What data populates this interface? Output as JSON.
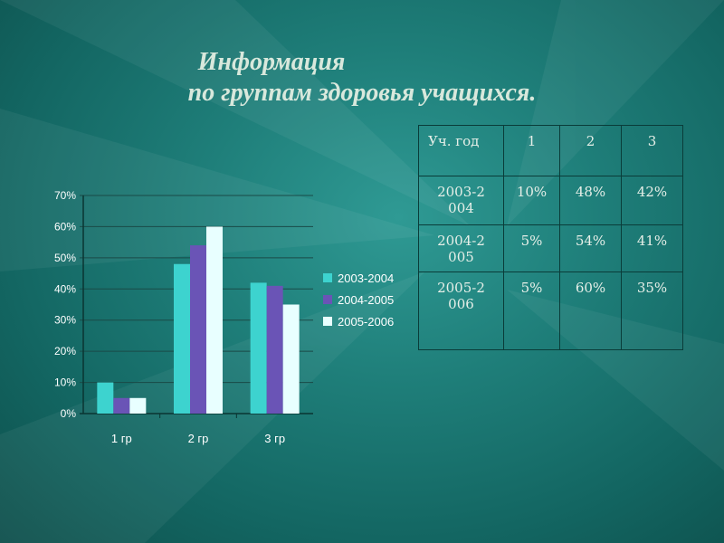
{
  "slide": {
    "title_line1": "Информация",
    "title_line2": "по группам здоровья учащихся."
  },
  "chart_data": {
    "type": "bar",
    "categories": [
      "1 гр",
      "2 гр",
      "3 гр"
    ],
    "series": [
      {
        "name": "2003-2004",
        "values": [
          10,
          48,
          42
        ],
        "color": "#3dd3cf"
      },
      {
        "name": "2004-2005",
        "values": [
          5,
          54,
          41
        ],
        "color": "#6a54b6"
      },
      {
        "name": "2005-2006",
        "values": [
          5,
          60,
          35
        ],
        "color": "#e8ffff"
      }
    ],
    "yticks": [
      "0%",
      "10%",
      "20%",
      "30%",
      "40%",
      "50%",
      "60%",
      "70%"
    ],
    "ylim": [
      0,
      70
    ],
    "grid": true,
    "legend": "right"
  },
  "table": {
    "header": [
      "Уч. год",
      "1",
      "2",
      "3"
    ],
    "rows": [
      [
        "2003-2\n004",
        "10%",
        "48%",
        "42%"
      ],
      [
        "2004-2\n005",
        "5%",
        "54%",
        "41%"
      ],
      [
        "2005-2\n006",
        "5%",
        "60%",
        "35%"
      ]
    ]
  }
}
